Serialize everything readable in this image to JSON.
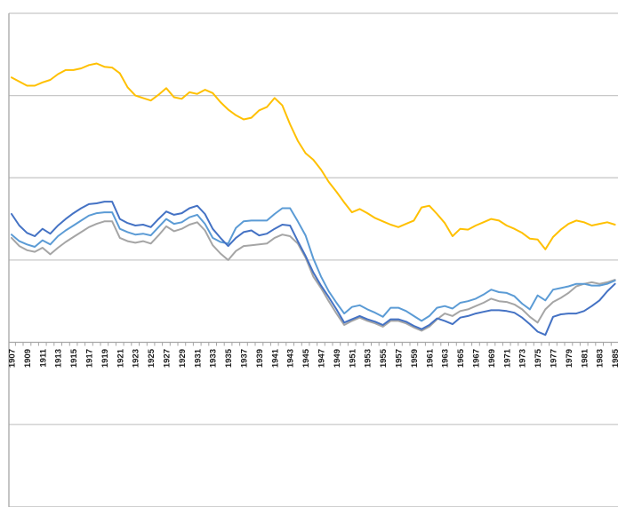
{
  "page": {
    "background": "#ffffff"
  },
  "chart_data": {
    "type": "line",
    "title": "",
    "legend_visible": false,
    "grid": true,
    "x": [
      1907,
      1908,
      1909,
      1910,
      1911,
      1912,
      1913,
      1914,
      1915,
      1916,
      1917,
      1918,
      1919,
      1920,
      1921,
      1922,
      1923,
      1924,
      1925,
      1926,
      1927,
      1928,
      1929,
      1930,
      1931,
      1932,
      1933,
      1934,
      1935,
      1936,
      1937,
      1938,
      1939,
      1940,
      1941,
      1942,
      1943,
      1944,
      1945,
      1946,
      1947,
      1948,
      1949,
      1950,
      1951,
      1952,
      1953,
      1954,
      1955,
      1956,
      1957,
      1958,
      1959,
      1960,
      1961,
      1962,
      1963,
      1964,
      1965,
      1966,
      1967,
      1968,
      1969,
      1970,
      1971,
      1972,
      1973,
      1974,
      1975,
      1976,
      1977,
      1978,
      1979,
      1980,
      1981,
      1982,
      1983,
      1984,
      1985
    ],
    "x_axis": {
      "labels": [
        "1907",
        "1909",
        "1911",
        "1913",
        "1915",
        "1917",
        "1919",
        "1921",
        "1923",
        "1925",
        "1927",
        "1929",
        "1931",
        "1933",
        "1935",
        "1937",
        "1939",
        "1941",
        "1943",
        "1945",
        "1947",
        "1949",
        "1951",
        "1953",
        "1955",
        "1957",
        "1959",
        "1961",
        "1963",
        "1965",
        "1967",
        "1969",
        "1971",
        "1973",
        "1975",
        "1977",
        "1979",
        "1981",
        "1983",
        "1985"
      ],
      "label_every_n_years": 2,
      "label_rotation_degrees": 90,
      "ticks_every_year": true
    },
    "y_axis": {
      "min": -2,
      "max": 4,
      "gridline_interval": 1,
      "tick_labels_visible": false,
      "category_axis_crosses_at": 0
    },
    "series": [
      {
        "name": "gray",
        "color": "#A5A5A5",
        "values": [
          1.27,
          1.17,
          1.12,
          1.1,
          1.15,
          1.07,
          1.15,
          1.22,
          1.28,
          1.34,
          1.4,
          1.44,
          1.47,
          1.47,
          1.27,
          1.23,
          1.21,
          1.23,
          1.2,
          1.3,
          1.41,
          1.35,
          1.38,
          1.43,
          1.46,
          1.36,
          1.18,
          1.08,
          1.0,
          1.11,
          1.17,
          1.18,
          1.19,
          1.2,
          1.27,
          1.31,
          1.29,
          1.2,
          1.03,
          0.8,
          0.66,
          0.5,
          0.35,
          0.21,
          0.26,
          0.3,
          0.26,
          0.23,
          0.19,
          0.26,
          0.26,
          0.23,
          0.18,
          0.14,
          0.19,
          0.28,
          0.35,
          0.32,
          0.38,
          0.4,
          0.44,
          0.48,
          0.53,
          0.5,
          0.49,
          0.46,
          0.4,
          0.31,
          0.24,
          0.4,
          0.49,
          0.54,
          0.6,
          0.68,
          0.71,
          0.73,
          0.71,
          0.73,
          0.76
        ]
      },
      {
        "name": "light-blue",
        "color": "#5B9BD5",
        "values": [
          1.31,
          1.23,
          1.19,
          1.16,
          1.24,
          1.19,
          1.29,
          1.36,
          1.42,
          1.48,
          1.54,
          1.57,
          1.58,
          1.58,
          1.38,
          1.34,
          1.31,
          1.32,
          1.3,
          1.4,
          1.5,
          1.44,
          1.46,
          1.52,
          1.55,
          1.44,
          1.27,
          1.22,
          1.2,
          1.39,
          1.47,
          1.48,
          1.48,
          1.48,
          1.56,
          1.63,
          1.63,
          1.47,
          1.3,
          1.02,
          0.8,
          0.62,
          0.48,
          0.35,
          0.43,
          0.45,
          0.4,
          0.36,
          0.31,
          0.42,
          0.42,
          0.38,
          0.32,
          0.26,
          0.32,
          0.42,
          0.44,
          0.41,
          0.48,
          0.5,
          0.53,
          0.58,
          0.64,
          0.61,
          0.6,
          0.56,
          0.47,
          0.4,
          0.57,
          0.51,
          0.64,
          0.66,
          0.68,
          0.71,
          0.71,
          0.69,
          0.69,
          0.71,
          0.75
        ]
      },
      {
        "name": "dark-blue",
        "color": "#4472C4",
        "values": [
          1.56,
          1.42,
          1.33,
          1.29,
          1.38,
          1.32,
          1.42,
          1.5,
          1.57,
          1.63,
          1.68,
          1.69,
          1.71,
          1.71,
          1.5,
          1.45,
          1.42,
          1.43,
          1.4,
          1.5,
          1.59,
          1.55,
          1.57,
          1.63,
          1.66,
          1.56,
          1.38,
          1.27,
          1.17,
          1.27,
          1.34,
          1.36,
          1.3,
          1.32,
          1.38,
          1.43,
          1.42,
          1.23,
          1.05,
          0.85,
          0.69,
          0.55,
          0.4,
          0.24,
          0.28,
          0.32,
          0.28,
          0.25,
          0.21,
          0.28,
          0.28,
          0.25,
          0.2,
          0.16,
          0.21,
          0.29,
          0.26,
          0.22,
          0.3,
          0.32,
          0.35,
          0.37,
          0.39,
          0.39,
          0.38,
          0.36,
          0.3,
          0.22,
          0.13,
          0.09,
          0.31,
          0.34,
          0.35,
          0.35,
          0.38,
          0.44,
          0.51,
          0.62,
          0.71
        ]
      },
      {
        "name": "orange",
        "color": "#FFC000",
        "values": [
          3.22,
          3.17,
          3.12,
          3.12,
          3.16,
          3.19,
          3.26,
          3.31,
          3.31,
          3.33,
          3.37,
          3.39,
          3.35,
          3.34,
          3.27,
          3.1,
          3.0,
          2.97,
          2.94,
          3.01,
          3.09,
          2.98,
          2.96,
          3.04,
          3.02,
          3.07,
          3.03,
          2.92,
          2.83,
          2.76,
          2.71,
          2.73,
          2.82,
          2.86,
          2.97,
          2.88,
          2.65,
          2.45,
          2.3,
          2.22,
          2.1,
          1.95,
          1.83,
          1.7,
          1.58,
          1.62,
          1.57,
          1.51,
          1.47,
          1.43,
          1.4,
          1.44,
          1.48,
          1.64,
          1.66,
          1.56,
          1.45,
          1.29,
          1.38,
          1.37,
          1.42,
          1.46,
          1.5,
          1.48,
          1.42,
          1.38,
          1.33,
          1.26,
          1.25,
          1.13,
          1.28,
          1.37,
          1.44,
          1.48,
          1.46,
          1.42,
          1.44,
          1.46,
          1.43
        ]
      }
    ],
    "colors": {
      "gridline": "#C8C8C8",
      "axis": "#A6A6A6",
      "tick_label": "#1A1A1A"
    }
  }
}
